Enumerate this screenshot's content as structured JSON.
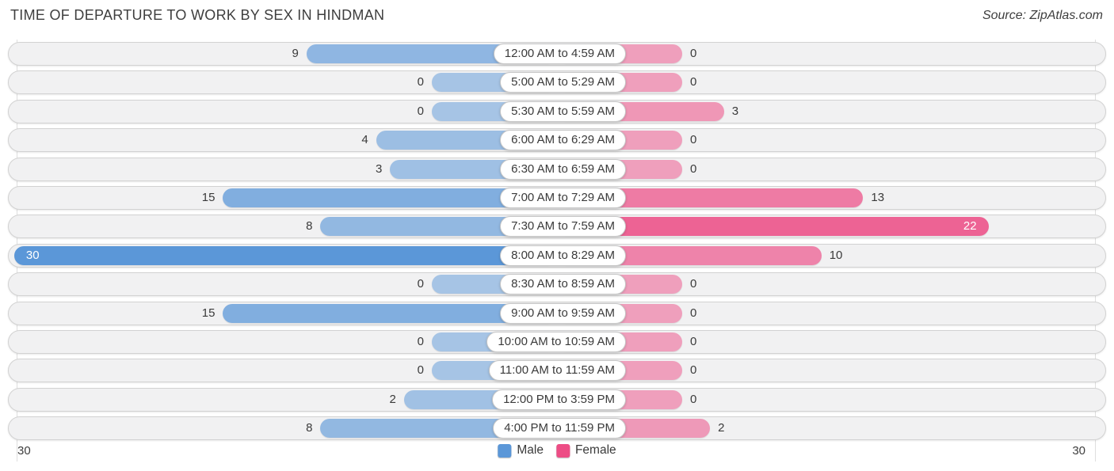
{
  "header": {
    "title": "TIME OF DEPARTURE TO WORK BY SEX IN HINDMAN",
    "source": "Source: ZipAtlas.com"
  },
  "colors": {
    "male": "#5b97d8",
    "female": "#ed4d85",
    "row_background": "#f1f1f2",
    "row_border": "#d2d2d2",
    "text": "#3a3a3a"
  },
  "legend": [
    {
      "label": "Male",
      "color": "#5b97d8"
    },
    {
      "label": "Female",
      "color": "#ed4d85"
    }
  ],
  "axis": {
    "left_label": "30",
    "right_label": "30",
    "max": 30
  },
  "chart_data": {
    "type": "bar",
    "orientation": "diverging-horizontal",
    "title": "TIME OF DEPARTURE TO WORK BY SEX IN HINDMAN",
    "categories": [
      "12:00 AM to 4:59 AM",
      "5:00 AM to 5:29 AM",
      "5:30 AM to 5:59 AM",
      "6:00 AM to 6:29 AM",
      "6:30 AM to 6:59 AM",
      "7:00 AM to 7:29 AM",
      "7:30 AM to 7:59 AM",
      "8:00 AM to 8:29 AM",
      "8:30 AM to 8:59 AM",
      "9:00 AM to 9:59 AM",
      "10:00 AM to 10:59 AM",
      "11:00 AM to 11:59 AM",
      "12:00 PM to 3:59 PM",
      "4:00 PM to 11:59 PM"
    ],
    "series": [
      {
        "name": "Male",
        "values": [
          9,
          0,
          0,
          4,
          3,
          15,
          8,
          30,
          0,
          15,
          0,
          0,
          2,
          8
        ]
      },
      {
        "name": "Female",
        "values": [
          0,
          0,
          3,
          0,
          0,
          13,
          22,
          10,
          0,
          0,
          0,
          0,
          0,
          2
        ]
      }
    ],
    "axis_range": [
      0,
      30
    ],
    "legend_position": "bottom-center"
  }
}
